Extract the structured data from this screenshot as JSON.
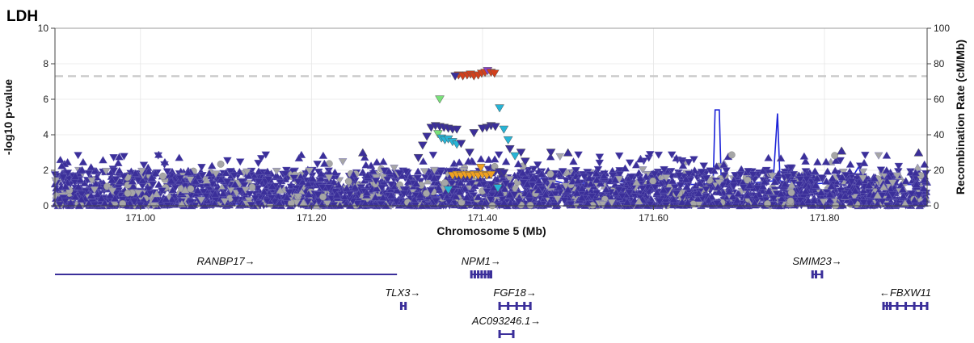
{
  "chart_data": {
    "type": "scatter",
    "title": "LDH",
    "xlabel": "Chromosome 5 (Mb)",
    "ylabel": "-log10 p-value",
    "y2label": "Recombination Rate (cM/Mb)",
    "xlim": [
      170.9,
      171.92
    ],
    "ylim": [
      0,
      10
    ],
    "y2lim": [
      0,
      100
    ],
    "xticks": [
      "171.00",
      "171.20",
      "171.40",
      "171.60",
      "171.80"
    ],
    "xtick_values": [
      171.0,
      171.2,
      171.4,
      171.6,
      171.8
    ],
    "yticks": [
      "0",
      "2",
      "4",
      "6",
      "8",
      "10"
    ],
    "y2ticks": [
      "0",
      "20",
      "40",
      "60",
      "80",
      "100"
    ],
    "significance_threshold": 7.3,
    "grid": true,
    "colors": {
      "snp_main": "#3b2f9a",
      "snp_gray": "#a6a6a6",
      "red": "#d2401c",
      "orange": "#f0a020",
      "cyan": "#27b4d6",
      "green": "#79e07a",
      "purple": "#8b3fd0",
      "recomb": "#1b22d8",
      "threshold": "#c8c8c8"
    },
    "highlighted_snps": [
      {
        "x": 171.372,
        "y": 7.35,
        "color": "red",
        "marker": "v"
      },
      {
        "x": 171.377,
        "y": 7.3,
        "color": "red",
        "marker": "v"
      },
      {
        "x": 171.382,
        "y": 7.35,
        "color": "red",
        "marker": "v"
      },
      {
        "x": 171.386,
        "y": 7.4,
        "color": "red",
        "marker": "v"
      },
      {
        "x": 171.39,
        "y": 7.3,
        "color": "red",
        "marker": "v"
      },
      {
        "x": 171.395,
        "y": 7.35,
        "color": "red",
        "marker": "v"
      },
      {
        "x": 171.399,
        "y": 7.45,
        "color": "red",
        "marker": "v"
      },
      {
        "x": 171.403,
        "y": 7.5,
        "color": "red",
        "marker": "v"
      },
      {
        "x": 171.406,
        "y": 7.6,
        "color": "purple",
        "marker": "v"
      },
      {
        "x": 171.41,
        "y": 7.5,
        "color": "red",
        "marker": "v"
      },
      {
        "x": 171.414,
        "y": 7.45,
        "color": "red",
        "marker": "v"
      },
      {
        "x": 171.368,
        "y": 7.3,
        "color": "gray",
        "marker": "v"
      },
      {
        "x": 171.35,
        "y": 6.0,
        "color": "green",
        "marker": "v"
      },
      {
        "x": 171.348,
        "y": 4.05,
        "color": "green",
        "marker": "v"
      },
      {
        "x": 171.352,
        "y": 3.8,
        "color": "cyan",
        "marker": "v"
      },
      {
        "x": 171.356,
        "y": 3.7,
        "color": "cyan",
        "marker": "v"
      },
      {
        "x": 171.36,
        "y": 3.75,
        "color": "cyan",
        "marker": "v"
      },
      {
        "x": 171.365,
        "y": 3.6,
        "color": "cyan",
        "marker": "v"
      },
      {
        "x": 171.37,
        "y": 3.45,
        "color": "cyan",
        "marker": "v"
      },
      {
        "x": 171.42,
        "y": 5.5,
        "color": "cyan",
        "marker": "v"
      },
      {
        "x": 171.425,
        "y": 4.3,
        "color": "cyan",
        "marker": "v"
      },
      {
        "x": 171.43,
        "y": 3.7,
        "color": "cyan",
        "marker": "v"
      },
      {
        "x": 171.438,
        "y": 2.8,
        "color": "cyan",
        "marker": "v"
      },
      {
        "x": 171.36,
        "y": 0.9,
        "color": "cyan",
        "marker": "v"
      },
      {
        "x": 171.418,
        "y": 1.0,
        "color": "cyan",
        "marker": "v"
      },
      {
        "x": 171.365,
        "y": 1.7,
        "color": "orange",
        "marker": "v"
      },
      {
        "x": 171.37,
        "y": 1.75,
        "color": "orange",
        "marker": "v"
      },
      {
        "x": 171.375,
        "y": 1.7,
        "color": "orange",
        "marker": "v"
      },
      {
        "x": 171.38,
        "y": 1.75,
        "color": "orange",
        "marker": "v"
      },
      {
        "x": 171.385,
        "y": 1.7,
        "color": "orange",
        "marker": "v"
      },
      {
        "x": 171.39,
        "y": 1.75,
        "color": "orange",
        "marker": "v"
      },
      {
        "x": 171.395,
        "y": 1.7,
        "color": "orange",
        "marker": "v"
      },
      {
        "x": 171.4,
        "y": 1.75,
        "color": "orange",
        "marker": "v"
      },
      {
        "x": 171.405,
        "y": 1.7,
        "color": "orange",
        "marker": "v"
      },
      {
        "x": 171.41,
        "y": 1.75,
        "color": "orange",
        "marker": "v"
      },
      {
        "x": 171.398,
        "y": 2.15,
        "color": "orange",
        "marker": "v"
      },
      {
        "x": 171.34,
        "y": 4.4,
        "color": "snp_main",
        "marker": "v"
      },
      {
        "x": 171.345,
        "y": 4.5,
        "color": "snp_main",
        "marker": "v"
      },
      {
        "x": 171.35,
        "y": 4.45,
        "color": "snp_main",
        "marker": "v"
      },
      {
        "x": 171.355,
        "y": 4.4,
        "color": "snp_main",
        "marker": "v"
      },
      {
        "x": 171.36,
        "y": 4.35,
        "color": "snp_main",
        "marker": "v"
      },
      {
        "x": 171.365,
        "y": 4.3,
        "color": "snp_main",
        "marker": "v"
      },
      {
        "x": 171.37,
        "y": 4.3,
        "color": "snp_main",
        "marker": "v"
      },
      {
        "x": 171.41,
        "y": 4.5,
        "color": "snp_main",
        "marker": "v"
      },
      {
        "x": 171.415,
        "y": 4.45,
        "color": "snp_main",
        "marker": "v"
      },
      {
        "x": 171.405,
        "y": 4.4,
        "color": "snp_main",
        "marker": "v"
      },
      {
        "x": 171.4,
        "y": 4.35,
        "color": "snp_main",
        "marker": "v"
      },
      {
        "x": 171.39,
        "y": 4.1,
        "color": "snp_main",
        "marker": "v"
      },
      {
        "x": 171.385,
        "y": 3.0,
        "color": "snp_main",
        "marker": "v"
      },
      {
        "x": 171.375,
        "y": 3.5,
        "color": "snp_main",
        "marker": "v"
      },
      {
        "x": 171.432,
        "y": 3.2,
        "color": "snp_main",
        "marker": "v"
      },
      {
        "x": 171.445,
        "y": 3.0,
        "color": "snp_main",
        "marker": "v"
      },
      {
        "x": 171.33,
        "y": 3.4,
        "color": "snp_main",
        "marker": "v"
      },
      {
        "x": 171.335,
        "y": 3.9,
        "color": "snp_main",
        "marker": "v"
      },
      {
        "x": 171.45,
        "y": 2.5,
        "color": "snp_main",
        "marker": "v"
      },
      {
        "x": 171.325,
        "y": 2.7,
        "color": "snp_main",
        "marker": "v"
      },
      {
        "x": 171.26,
        "y": 3.0,
        "color": "snp_main",
        "marker": "^"
      },
      {
        "x": 171.48,
        "y": 3.0,
        "color": "snp_main",
        "marker": "v"
      },
      {
        "x": 171.5,
        "y": 3.0,
        "color": "snp_main",
        "marker": "^"
      },
      {
        "x": 171.82,
        "y": 3.1,
        "color": "snp_main",
        "marker": "^"
      },
      {
        "x": 171.91,
        "y": 3.0,
        "color": "snp_main",
        "marker": "^"
      },
      {
        "x": 171.42,
        "y": 1.9,
        "color": "snp_main",
        "marker": "v"
      },
      {
        "x": 171.425,
        "y": 1.85,
        "color": "snp_main",
        "marker": "v"
      }
    ],
    "recombination": [
      [
        170.9,
        1.0
      ],
      [
        171.0,
        1.0
      ],
      [
        171.1,
        1.0
      ],
      [
        171.2,
        1.0
      ],
      [
        171.26,
        1.0
      ],
      [
        171.3,
        1.0
      ],
      [
        171.31,
        10
      ],
      [
        171.315,
        18
      ],
      [
        171.32,
        10
      ],
      [
        171.36,
        4
      ],
      [
        171.4,
        6
      ],
      [
        171.45,
        8
      ],
      [
        171.47,
        16
      ],
      [
        171.5,
        12
      ],
      [
        171.55,
        14
      ],
      [
        171.6,
        12
      ],
      [
        171.66,
        12
      ],
      [
        171.67,
        16
      ],
      [
        171.672,
        54
      ],
      [
        171.677,
        54
      ],
      [
        171.679,
        16
      ],
      [
        171.7,
        12
      ],
      [
        171.74,
        14
      ],
      [
        171.745,
        52
      ],
      [
        171.748,
        14
      ],
      [
        171.78,
        12
      ],
      [
        171.83,
        14
      ],
      [
        171.84,
        22
      ],
      [
        171.845,
        14
      ],
      [
        171.88,
        12
      ],
      [
        171.92,
        12
      ]
    ],
    "genes": [
      {
        "name": "RANBP17",
        "label": "RANBP17→",
        "start": 170.9,
        "end": 171.3,
        "row": 0,
        "exons": []
      },
      {
        "name": "NPM1",
        "label": "NPM1→",
        "start": 171.387,
        "end": 171.41,
        "row": 0,
        "exons": [
          171.387,
          171.391,
          171.395,
          171.399,
          171.403,
          171.407,
          171.41
        ]
      },
      {
        "name": "SMIM23",
        "label": "SMIM23→",
        "start": 171.786,
        "end": 171.797,
        "row": 0,
        "exons": [
          171.786,
          171.79,
          171.797
        ]
      },
      {
        "name": "TLX3",
        "label": "TLX3→",
        "start": 171.305,
        "end": 171.31,
        "row": 1,
        "exons": [
          171.305,
          171.31
        ]
      },
      {
        "name": "FGF18",
        "label": "FGF18→",
        "start": 171.42,
        "end": 171.456,
        "row": 1,
        "exons": [
          171.42,
          171.43,
          171.44,
          171.449,
          171.456
        ]
      },
      {
        "name": "FBXW11",
        "label": "←FBXW11",
        "start": 171.869,
        "end": 171.92,
        "row": 1,
        "exons": [
          171.869,
          171.873,
          171.877,
          171.885,
          171.895,
          171.905,
          171.913,
          171.92
        ]
      },
      {
        "name": "AC093246.1",
        "label": "AC093246.1→",
        "start": 171.42,
        "end": 171.436,
        "row": 2,
        "exons": [
          171.42,
          171.436
        ]
      }
    ],
    "background_snps": {
      "count": 3500,
      "color_main": "#3b2f9a",
      "color_gray": "#a6a6a6",
      "gray_fraction": 0.16,
      "max_y": 2.0,
      "seed": 7
    }
  }
}
